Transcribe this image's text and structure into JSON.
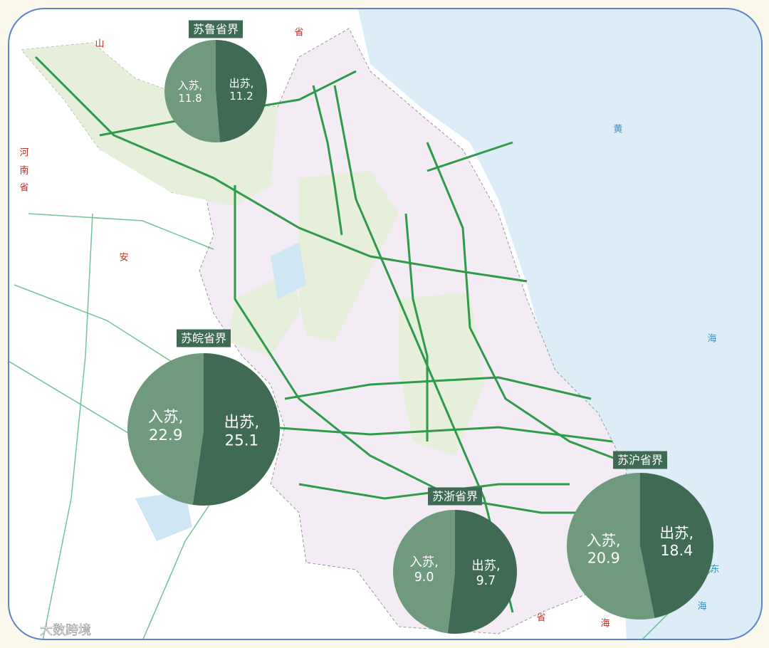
{
  "chart_data": [
    {
      "type": "pie",
      "title": "苏鲁省界",
      "categories": [
        "出苏,",
        "入苏,"
      ],
      "values": [
        11.2,
        11.8
      ],
      "value_labels": [
        "11.2",
        "11.8"
      ],
      "colors": [
        "#3f6b54",
        "#6f9a7e"
      ]
    },
    {
      "type": "pie",
      "title": "苏皖省界",
      "categories": [
        "出苏,",
        "入苏,"
      ],
      "values": [
        25.1,
        22.9
      ],
      "value_labels": [
        "25.1",
        "22.9"
      ],
      "colors": [
        "#3f6b54",
        "#6f9a7e"
      ]
    },
    {
      "type": "pie",
      "title": "苏浙省界",
      "categories": [
        "出苏,",
        "入苏,"
      ],
      "values": [
        9.7,
        9
      ],
      "value_labels": [
        "9.7",
        "9.0"
      ],
      "colors": [
        "#3f6b54",
        "#6f9a7e"
      ]
    },
    {
      "type": "pie",
      "title": "苏沪省界",
      "categories": [
        "出苏,",
        "入苏,"
      ],
      "values": [
        18.4,
        20.9
      ],
      "value_labels": [
        "18.4",
        "20.9"
      ],
      "colors": [
        "#3f6b54",
        "#6f9a7e"
      ]
    }
  ],
  "map_labels": [
    "山",
    "河",
    "南",
    "省",
    "安",
    "省",
    "黄",
    "海",
    "东",
    "海",
    "省",
    "海"
  ],
  "watermark": "大数跨境"
}
